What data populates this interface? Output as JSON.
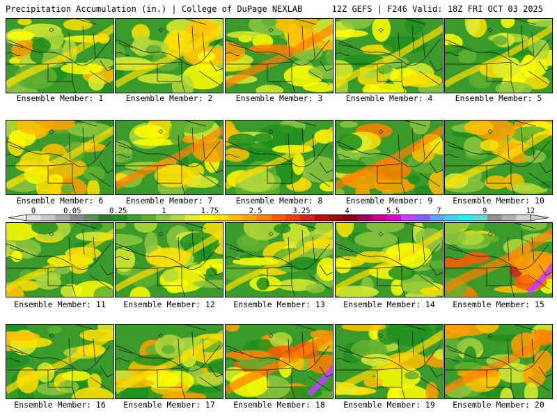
{
  "header": {
    "title": "Precipitation Accumulation (in.) | College of DuPage NEXLAB",
    "run_info": "12Z GEFS | F246 Valid: 18Z FRI OCT 03 2025"
  },
  "colorbar": {
    "labels": [
      "0",
      "0.05",
      "0.25",
      "1",
      "1.75",
      "2.5",
      "3.25",
      "4",
      "5.5",
      "7",
      "9",
      "12"
    ],
    "colors": [
      "#e0e0e0",
      "#c8c8c8",
      "#a8a8a8",
      "#888888",
      "#5a8f5a",
      "#2e7d32",
      "#1f8f1f",
      "#3aa02a",
      "#60b030",
      "#8cc63f",
      "#b4d838",
      "#dcec30",
      "#ffff00",
      "#ffe000",
      "#ffc000",
      "#ffa000",
      "#ff8000",
      "#ff5a00",
      "#f03a10",
      "#d82020",
      "#b80e0e",
      "#980a0a",
      "#800020",
      "#a0005a",
      "#c80090",
      "#e000c0",
      "#c040ff",
      "#8060ff",
      "#60a0ff",
      "#40d0ff",
      "#20f0f0",
      "#60d8d8",
      "#909090",
      "#b0b0b0",
      "#d0d0d0"
    ]
  },
  "members": [
    {
      "label": "Ensemble Member: 1",
      "intensity": 0.55
    },
    {
      "label": "Ensemble Member: 2",
      "intensity": 0.45
    },
    {
      "label": "Ensemble Member: 3",
      "intensity": 0.75
    },
    {
      "label": "Ensemble Member: 4",
      "intensity": 0.45
    },
    {
      "label": "Ensemble Member: 5",
      "intensity": 0.35
    },
    {
      "label": "Ensemble Member: 6",
      "intensity": 0.55
    },
    {
      "label": "Ensemble Member: 7",
      "intensity": 0.65
    },
    {
      "label": "Ensemble Member: 8",
      "intensity": 0.4
    },
    {
      "label": "Ensemble Member: 9",
      "intensity": 0.7
    },
    {
      "label": "Ensemble Member: 10",
      "intensity": 0.6
    },
    {
      "label": "Ensemble Member: 11",
      "intensity": 0.4
    },
    {
      "label": "Ensemble Member: 12",
      "intensity": 0.4
    },
    {
      "label": "Ensemble Member: 13",
      "intensity": 0.35
    },
    {
      "label": "Ensemble Member: 14",
      "intensity": 0.35
    },
    {
      "label": "Ensemble Member: 15",
      "intensity": 0.9
    },
    {
      "label": "Ensemble Member: 16",
      "intensity": 0.5
    },
    {
      "label": "Ensemble Member: 17",
      "intensity": 0.55
    },
    {
      "label": "Ensemble Member: 18",
      "intensity": 0.85
    },
    {
      "label": "Ensemble Member: 19",
      "intensity": 0.6
    },
    {
      "label": "Ensemble Member: 20",
      "intensity": 0.7
    }
  ]
}
